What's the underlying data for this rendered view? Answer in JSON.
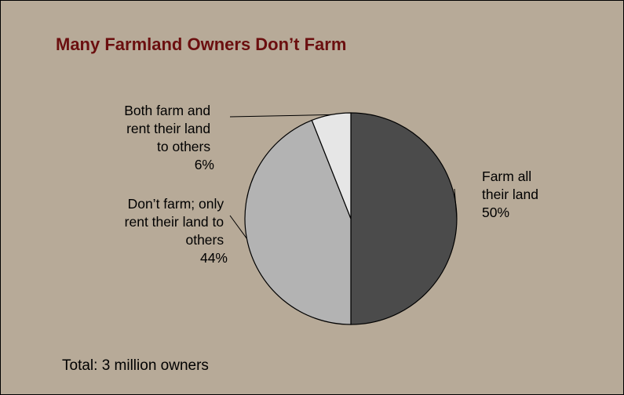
{
  "chart_data": {
    "type": "pie",
    "title": "Many Farmland Owners Don’t Farm",
    "slices": [
      {
        "name": "Farm all their land",
        "value": 50,
        "label_lines": [
          "Farm all",
          "their land",
          "50%"
        ],
        "color": "#4b4b4b"
      },
      {
        "name": "Don’t farm; only rent their land to others",
        "value": 44,
        "label_lines": [
          "Don’t farm; only",
          "rent their land to",
          "others",
          "44%"
        ],
        "color": "#b3b3b3"
      },
      {
        "name": "Both farm and rent their land to others",
        "value": 6,
        "label_lines": [
          "Both farm and",
          "rent their land",
          "to others",
          "6%"
        ],
        "color": "#e6e6e6"
      }
    ],
    "note": "Total:  3 million owners"
  },
  "colors": {
    "background": "#b7aa98",
    "title": "#6b0f0f",
    "slice_outline": "#000000"
  }
}
